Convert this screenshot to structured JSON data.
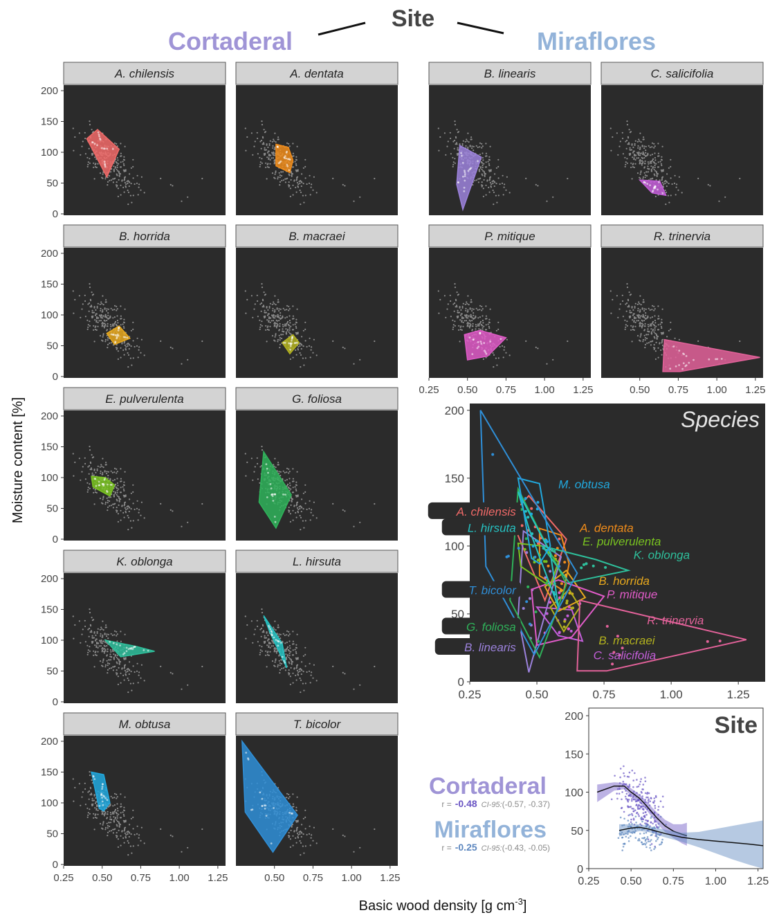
{
  "header": {
    "title": "Site",
    "site_left": "Cortaderal",
    "site_right": "Miraflores"
  },
  "y_axis_label": "Moisture content [%]",
  "x_axis_label": "Basic wood density [g cm",
  "x_axis_label_sup": "-3",
  "x_axis_label_end": "]",
  "colors": {
    "panel_bg": "#2b2b2b",
    "strip_bg": "#d3d3d3",
    "background_points": "#8c8c8c",
    "cortaderal": "#9f94d6",
    "miraflores": "#93b3d9"
  },
  "chart_data": [
    {
      "type": "scatter",
      "group": "Cortaderal",
      "facet_title": "A. chilensis",
      "color": "#f26a68",
      "hull": [
        [
          0.4,
          122
        ],
        [
          0.47,
          137
        ],
        [
          0.61,
          105
        ],
        [
          0.53,
          60
        ]
      ],
      "xlim": [
        0.25,
        1.3
      ],
      "ylim": [
        0,
        200
      ]
    },
    {
      "type": "scatter",
      "group": "Cortaderal",
      "facet_title": "A. dentata",
      "color": "#f08c1a",
      "hull": [
        [
          0.51,
          113
        ],
        [
          0.59,
          108
        ],
        [
          0.62,
          87
        ],
        [
          0.6,
          67
        ],
        [
          0.51,
          78
        ]
      ],
      "xlim": [
        0.25,
        1.3
      ],
      "ylim": [
        0,
        200
      ]
    },
    {
      "type": "scatter",
      "group": "Miraflores",
      "facet_title": "B. linearis",
      "color": "#9c82dc",
      "hull": [
        [
          0.45,
          111
        ],
        [
          0.59,
          92
        ],
        [
          0.47,
          7
        ],
        [
          0.43,
          48
        ]
      ],
      "xlim": [
        0.25,
        1.3
      ],
      "ylim": [
        0,
        200
      ]
    },
    {
      "type": "scatter",
      "group": "Miraflores",
      "facet_title": "C. salicifolia",
      "color": "#c55fdb",
      "hull": [
        [
          0.5,
          55
        ],
        [
          0.63,
          53
        ],
        [
          0.67,
          30
        ],
        [
          0.58,
          34
        ]
      ],
      "xlim": [
        0.25,
        1.3
      ],
      "ylim": [
        0,
        200
      ]
    },
    {
      "type": "scatter",
      "group": "Cortaderal",
      "facet_title": "B. horrida",
      "color": "#e7a81d",
      "hull": [
        [
          0.53,
          70
        ],
        [
          0.61,
          82
        ],
        [
          0.68,
          62
        ],
        [
          0.58,
          52
        ]
      ],
      "xlim": [
        0.25,
        1.3
      ],
      "ylim": [
        0,
        200
      ]
    },
    {
      "type": "scatter",
      "group": "Cortaderal",
      "facet_title": "B. macraei",
      "color": "#b3b21e",
      "hull": [
        [
          0.55,
          55
        ],
        [
          0.62,
          68
        ],
        [
          0.66,
          55
        ],
        [
          0.6,
          37
        ]
      ],
      "xlim": [
        0.25,
        1.3
      ],
      "ylim": [
        0,
        200
      ]
    },
    {
      "type": "scatter",
      "group": "Miraflores",
      "facet_title": "P. mitique",
      "color": "#e05bc8",
      "hull": [
        [
          0.48,
          68
        ],
        [
          0.58,
          75
        ],
        [
          0.75,
          63
        ],
        [
          0.63,
          33
        ],
        [
          0.5,
          27
        ]
      ],
      "xlim": [
        0.25,
        1.3
      ],
      "ylim": [
        0,
        200
      ]
    },
    {
      "type": "scatter",
      "group": "Miraflores",
      "facet_title": "R. trinervia",
      "color": "#e3629a",
      "hull": [
        [
          0.66,
          60
        ],
        [
          1.28,
          31
        ],
        [
          0.76,
          8
        ],
        [
          0.65,
          8
        ]
      ],
      "xlim": [
        0.25,
        1.3
      ],
      "ylim": [
        0,
        200
      ]
    },
    {
      "type": "scatter",
      "group": "Cortaderal",
      "facet_title": "E. pulverulenta",
      "color": "#79c320",
      "hull": [
        [
          0.43,
          102
        ],
        [
          0.52,
          100
        ],
        [
          0.58,
          88
        ],
        [
          0.55,
          70
        ],
        [
          0.44,
          85
        ]
      ],
      "xlim": [
        0.25,
        1.3
      ],
      "ylim": [
        0,
        200
      ]
    },
    {
      "type": "scatter",
      "group": "Cortaderal",
      "facet_title": "G. foliosa",
      "color": "#2fb35a",
      "hull": [
        [
          0.43,
          142
        ],
        [
          0.61,
          72
        ],
        [
          0.51,
          18
        ],
        [
          0.4,
          60
        ]
      ],
      "xlim": [
        0.25,
        1.3
      ],
      "ylim": [
        0,
        200
      ]
    },
    {
      "type": "scatter",
      "group": "Cortaderal",
      "facet_title": "K. oblonga",
      "color": "#2ec09c",
      "hull": [
        [
          0.52,
          100
        ],
        [
          0.72,
          90
        ],
        [
          0.84,
          82
        ],
        [
          0.62,
          73
        ]
      ],
      "xlim": [
        0.25,
        1.3
      ],
      "ylim": [
        0,
        200
      ]
    },
    {
      "type": "scatter",
      "group": "Cortaderal",
      "facet_title": "L. hirsuta",
      "color": "#26c3c3",
      "hull": [
        [
          0.43,
          140
        ],
        [
          0.55,
          95
        ],
        [
          0.58,
          55
        ],
        [
          0.47,
          113
        ]
      ],
      "xlim": [
        0.25,
        1.3
      ],
      "ylim": [
        0,
        200
      ]
    },
    {
      "type": "scatter",
      "group": "Cortaderal",
      "facet_title": "M. obtusa",
      "color": "#21a9df",
      "hull": [
        [
          0.43,
          150
        ],
        [
          0.51,
          146
        ],
        [
          0.55,
          100
        ],
        [
          0.51,
          87
        ],
        [
          0.48,
          91
        ]
      ],
      "xlim": [
        0.25,
        1.3
      ],
      "ylim": [
        0,
        200
      ]
    },
    {
      "type": "scatter",
      "group": "Cortaderal",
      "facet_title": "T. bicolor",
      "color": "#2f8fd8",
      "hull": [
        [
          0.29,
          200
        ],
        [
          0.65,
          80
        ],
        [
          0.49,
          20
        ],
        [
          0.31,
          85
        ]
      ],
      "xlim": [
        0.25,
        1.3
      ],
      "ylim": [
        0,
        200
      ]
    },
    {
      "type": "scatter",
      "facet_title": "Species",
      "xlim": [
        0.25,
        1.35
      ],
      "ylim": [
        0,
        205
      ],
      "x_ticks": [
        "0.25",
        "0.50",
        "0.75",
        "1.00",
        "1.25"
      ],
      "y_ticks": [
        "0",
        "50",
        "100",
        "150",
        "200"
      ],
      "labels": [
        {
          "text": "M. obtusa",
          "color": "#21a9df",
          "boxed": false,
          "x": 0.58,
          "y": 145
        },
        {
          "text": "A. chilensis",
          "color": "#f26a68",
          "boxed": true,
          "x": 0.44,
          "y": 125
        },
        {
          "text": "L. hirsuta",
          "color": "#26c3c3",
          "boxed": true,
          "x": 0.44,
          "y": 113
        },
        {
          "text": "A. dentata",
          "color": "#f08c1a",
          "boxed": false,
          "x": 0.66,
          "y": 113
        },
        {
          "text": "E. pulverulenta",
          "color": "#79c320",
          "boxed": false,
          "x": 0.67,
          "y": 103
        },
        {
          "text": "K. oblonga",
          "color": "#2ec09c",
          "boxed": false,
          "x": 0.86,
          "y": 93
        },
        {
          "text": "T. bicolor",
          "color": "#2f8fd8",
          "boxed": true,
          "x": 0.44,
          "y": 67
        },
        {
          "text": "B. horrida",
          "color": "#e7a81d",
          "boxed": false,
          "x": 0.73,
          "y": 74
        },
        {
          "text": "P. mitique",
          "color": "#e05bc8",
          "boxed": false,
          "x": 0.76,
          "y": 64
        },
        {
          "text": "R. trinervia",
          "color": "#e3629a",
          "boxed": false,
          "x": 0.91,
          "y": 45
        },
        {
          "text": "G. foliosa",
          "color": "#2fb35a",
          "boxed": true,
          "x": 0.44,
          "y": 40
        },
        {
          "text": "B. macraei",
          "color": "#b3b21e",
          "boxed": false,
          "x": 0.73,
          "y": 30
        },
        {
          "text": "B. linearis",
          "color": "#9c82dc",
          "boxed": true,
          "x": 0.44,
          "y": 25
        },
        {
          "text": "C. salicifolia",
          "color": "#c55fdb",
          "boxed": false,
          "x": 0.71,
          "y": 19
        }
      ]
    },
    {
      "type": "scatter",
      "facet_title": "Site",
      "xlim": [
        0.25,
        1.28
      ],
      "ylim": [
        0,
        210
      ],
      "x_ticks": [
        "0.25",
        "0.50",
        "0.75",
        "1.00",
        "1.25"
      ],
      "y_ticks": [
        "0",
        "50",
        "100",
        "150",
        "200"
      ],
      "series": [
        {
          "name": "Cortaderal",
          "color": "#6a55c4",
          "stats": {
            "r_label": "r =",
            "r": "-0.48",
            "ci_label": "CI-95:",
            "ci": "(-0.57, -0.37)"
          },
          "fit_x": [
            0.3,
            0.4,
            0.46,
            0.5,
            0.55,
            0.6,
            0.65,
            0.7,
            0.75,
            0.8,
            0.83
          ],
          "fit_y": [
            100,
            108,
            108,
            100,
            92,
            80,
            67,
            56,
            49,
            45,
            43
          ],
          "band_upper": [
            110,
            113,
            112,
            105,
            97,
            86,
            74,
            64,
            58,
            58,
            60
          ],
          "band_lower": [
            87,
            102,
            104,
            95,
            87,
            74,
            60,
            48,
            40,
            33,
            30
          ]
        },
        {
          "name": "Miraflores",
          "color": "#5d87bf",
          "stats": {
            "r_label": "r =",
            "r": "-0.25",
            "ci_label": "CI-95:",
            "ci": "(-0.43, -0.05)"
          },
          "fit_x": [
            0.43,
            0.5,
            0.55,
            0.6,
            0.7,
            0.8,
            0.9,
            1.0,
            1.1,
            1.2,
            1.28
          ],
          "fit_y": [
            50,
            53,
            54,
            52,
            46,
            41,
            38,
            36,
            34,
            32,
            30
          ],
          "band_upper": [
            58,
            58,
            58,
            56,
            51,
            47,
            48,
            52,
            56,
            60,
            63
          ],
          "band_lower": [
            42,
            47,
            49,
            48,
            41,
            35,
            28,
            20,
            12,
            5,
            0
          ]
        }
      ]
    }
  ],
  "panel_axis_ticks": {
    "x_ticks": [
      "0.25",
      "0.50",
      "0.75",
      "1.00",
      "1.25"
    ],
    "y_ticks": [
      "0",
      "50",
      "100",
      "150",
      "200"
    ]
  }
}
